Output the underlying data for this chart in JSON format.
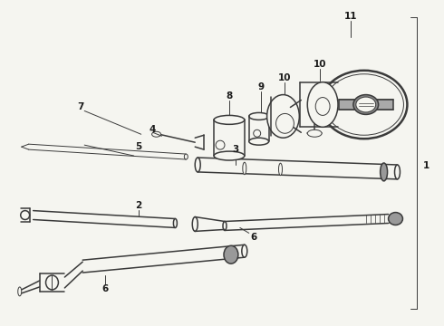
{
  "bg_color": "#f5f5f0",
  "line_color": "#3a3a3a",
  "label_color": "#1a1a1a",
  "lw_thin": 0.7,
  "lw_med": 1.1,
  "lw_thick": 1.8
}
